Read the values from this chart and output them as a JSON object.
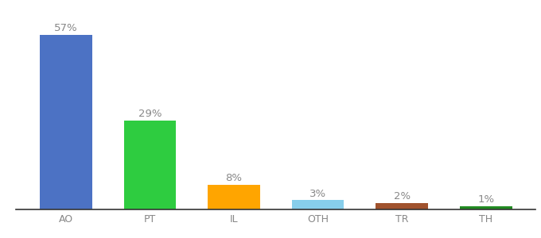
{
  "categories": [
    "AO",
    "PT",
    "IL",
    "OTH",
    "TR",
    "TH"
  ],
  "values": [
    57,
    29,
    8,
    3,
    2,
    1
  ],
  "labels": [
    "57%",
    "29%",
    "8%",
    "3%",
    "2%",
    "1%"
  ],
  "bar_colors": [
    "#4C72C4",
    "#2ECC40",
    "#FFA500",
    "#87CEEB",
    "#A0522D",
    "#228B22"
  ],
  "background_color": "#ffffff",
  "ylim": [
    0,
    63
  ],
  "label_fontsize": 9.5,
  "tick_fontsize": 9,
  "bar_width": 0.62
}
